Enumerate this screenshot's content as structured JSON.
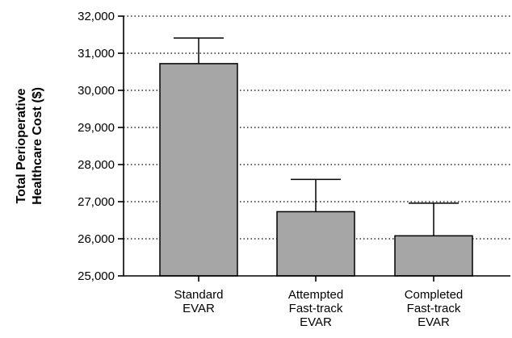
{
  "chart_data": {
    "type": "bar",
    "ylabel_lines": [
      "Total Perioperative",
      "Healthcare Cost ($)"
    ],
    "ylim": [
      25000,
      32000
    ],
    "y_ticks": [
      25000,
      26000,
      27000,
      28000,
      29000,
      30000,
      31000,
      32000
    ],
    "y_tick_labels": [
      "25,000",
      "26,000",
      "27,000",
      "28,000",
      "29,000",
      "30,000",
      "31,000",
      "32,000"
    ],
    "grid": true,
    "categories": [
      [
        "Standard",
        "EVAR"
      ],
      [
        "Attempted",
        "Fast-track",
        "EVAR"
      ],
      [
        "Completed",
        "Fast-track",
        "EVAR"
      ]
    ],
    "values": [
      30720,
      26730,
      26080
    ],
    "error_upper": [
      31410,
      27600,
      26960
    ],
    "bar_color": "#a6a6a6"
  }
}
